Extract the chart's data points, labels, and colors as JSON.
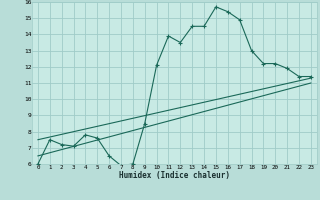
{
  "xlabel": "Humidex (Indice chaleur)",
  "bg_color": "#b8ddd8",
  "plot_bg_color": "#c8eae4",
  "grid_color": "#a0ccc8",
  "line_color": "#1a6858",
  "xlim": [
    -0.5,
    23.5
  ],
  "ylim": [
    6,
    16
  ],
  "yticks": [
    6,
    7,
    8,
    9,
    10,
    11,
    12,
    13,
    14,
    15,
    16
  ],
  "xticks": [
    0,
    1,
    2,
    3,
    4,
    5,
    6,
    7,
    8,
    9,
    10,
    11,
    12,
    13,
    14,
    15,
    16,
    17,
    18,
    19,
    20,
    21,
    22,
    23
  ],
  "series1_x": [
    0,
    1,
    2,
    3,
    4,
    5,
    6,
    7,
    8,
    9,
    10,
    11,
    12,
    13,
    14,
    15,
    16,
    17,
    18,
    19,
    20,
    21,
    22,
    23
  ],
  "series1_y": [
    6.0,
    7.5,
    7.2,
    7.1,
    7.8,
    7.6,
    6.5,
    5.9,
    6.0,
    8.5,
    12.1,
    13.9,
    13.5,
    14.5,
    14.5,
    15.7,
    15.4,
    14.9,
    13.0,
    12.2,
    12.2,
    11.9,
    11.4,
    11.4
  ],
  "series2_x": [
    0,
    23
  ],
  "series2_y": [
    7.5,
    11.3
  ],
  "series3_x": [
    0,
    23
  ],
  "series3_y": [
    6.5,
    11.0
  ]
}
